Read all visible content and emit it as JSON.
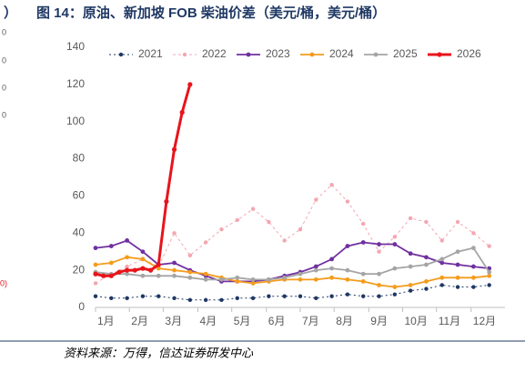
{
  "edge_fragments": [
    "）",
    "0",
    "0",
    "0",
    "0",
    "0)"
  ],
  "chart_data": {
    "type": "line",
    "title": "图 14：原油、新加坡 FOB 柴油价差（美元/桶，美元/桶）",
    "source": "资料来源：万得，信达证券研发中心",
    "xlim": [
      0,
      52
    ],
    "xticks": [
      {
        "value": 0,
        "label": "1月"
      },
      {
        "value": 4.3,
        "label": "2月"
      },
      {
        "value": 8.6,
        "label": "3月"
      },
      {
        "value": 13,
        "label": "4月"
      },
      {
        "value": 17.3,
        "label": "5月"
      },
      {
        "value": 21.7,
        "label": "6月"
      },
      {
        "value": 26,
        "label": "7月"
      },
      {
        "value": 30.3,
        "label": "8月"
      },
      {
        "value": 34.7,
        "label": "9月"
      },
      {
        "value": 39,
        "label": "10月"
      },
      {
        "value": 43.3,
        "label": "11月"
      },
      {
        "value": 47.7,
        "label": "12月"
      }
    ],
    "ylim": [
      0,
      140
    ],
    "yticks": [
      0,
      20,
      40,
      60,
      80,
      100,
      120,
      140
    ],
    "legend": "top",
    "series": [
      {
        "name": "2021",
        "color": "#1f3864",
        "style": "dotted",
        "x": [
          0,
          2,
          4,
          6,
          8,
          10,
          12,
          14,
          16,
          18,
          20,
          22,
          24,
          26,
          28,
          30,
          32,
          34,
          36,
          38,
          40,
          42,
          44,
          46,
          48,
          50
        ],
        "values": [
          6,
          5,
          5,
          6,
          6,
          5,
          4,
          4,
          4,
          5,
          5,
          6,
          6,
          6,
          5,
          6,
          7,
          6,
          6,
          7,
          9,
          10,
          12,
          11,
          11,
          12
        ]
      },
      {
        "name": "2022",
        "color": "#f4a6b0",
        "style": "dashed",
        "x": [
          0,
          2,
          4,
          6,
          8,
          10,
          12,
          14,
          16,
          18,
          20,
          22,
          24,
          26,
          28,
          30,
          32,
          34,
          36,
          38,
          40,
          42,
          44,
          46,
          48,
          50
        ],
        "values": [
          13,
          18,
          22,
          26,
          22,
          40,
          28,
          35,
          42,
          47,
          53,
          46,
          36,
          42,
          58,
          66,
          57,
          45,
          30,
          38,
          48,
          46,
          36,
          46,
          40,
          33
        ]
      },
      {
        "name": "2023",
        "color": "#7030a0",
        "style": "solid",
        "x": [
          0,
          2,
          4,
          6,
          8,
          10,
          12,
          14,
          16,
          18,
          20,
          22,
          24,
          26,
          28,
          30,
          32,
          34,
          36,
          38,
          40,
          42,
          44,
          46,
          48,
          50
        ],
        "values": [
          32,
          33,
          36,
          30,
          23,
          24,
          20,
          17,
          14,
          14,
          14,
          15,
          17,
          19,
          22,
          26,
          33,
          35,
          34,
          34,
          29,
          27,
          24,
          23,
          22,
          21
        ]
      },
      {
        "name": "2024",
        "color": "#f59b1c",
        "style": "solid",
        "x": [
          0,
          2,
          4,
          6,
          8,
          10,
          12,
          14,
          16,
          18,
          20,
          22,
          24,
          26,
          28,
          30,
          32,
          34,
          36,
          38,
          40,
          42,
          44,
          46,
          48,
          50
        ],
        "values": [
          23,
          24,
          27,
          26,
          21,
          20,
          19,
          18,
          16,
          14,
          13,
          14,
          15,
          15,
          15,
          16,
          15,
          14,
          12,
          11,
          12,
          14,
          16,
          16,
          16,
          17
        ]
      },
      {
        "name": "2025",
        "color": "#a5a5a5",
        "style": "solid",
        "x": [
          0,
          2,
          4,
          6,
          8,
          10,
          12,
          14,
          16,
          18,
          20,
          22,
          24,
          26,
          28,
          30,
          32,
          34,
          36,
          38,
          40,
          42,
          44,
          46,
          48,
          50
        ],
        "values": [
          19,
          18,
          18,
          17,
          17,
          17,
          16,
          15,
          15,
          16,
          15,
          15,
          16,
          18,
          20,
          21,
          20,
          18,
          18,
          21,
          22,
          23,
          26,
          30,
          32,
          19
        ]
      },
      {
        "name": "2026",
        "color": "#e8141b",
        "style": "bold",
        "x": [
          0,
          1,
          2,
          3,
          4,
          5,
          6,
          7,
          8,
          9,
          10,
          11,
          12
        ],
        "values": [
          18,
          17,
          17,
          19,
          20,
          20,
          21,
          20,
          23,
          57,
          85,
          105,
          120
        ]
      }
    ]
  }
}
